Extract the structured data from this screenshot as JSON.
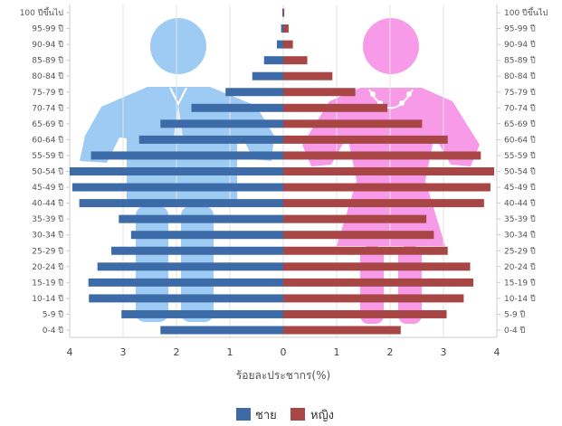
{
  "chart_data": {
    "type": "bar",
    "orientation": "horizontal",
    "style": "population-pyramid",
    "categories": [
      "100 ปีขึ้นไป",
      "95-99 ปี",
      "90-94 ปี",
      "85-89 ปี",
      "80-84 ปี",
      "75-79 ปี",
      "70-74 ปี",
      "65-69 ปี",
      "60-64 ปี",
      "55-59 ปี",
      "50-54 ปี",
      "45-49 ปี",
      "40-44 ปี",
      "35-39 ปี",
      "30-34 ปี",
      "25-29 ปี",
      "20-24 ปี",
      "15-19 ปี",
      "10-14 ปี",
      "5-9 ปี",
      "0-4 ปี"
    ],
    "series": [
      {
        "name": "ชาย",
        "color": "#3d6ba8",
        "side": "left",
        "values": [
          0.01,
          0.04,
          0.12,
          0.36,
          0.58,
          1.08,
          1.72,
          2.3,
          2.7,
          3.6,
          4.0,
          3.95,
          3.82,
          3.08,
          2.85,
          3.22,
          3.48,
          3.65,
          3.64,
          3.03,
          2.3
        ]
      },
      {
        "name": "หญิง",
        "color": "#a84646",
        "side": "right",
        "values": [
          0.02,
          0.1,
          0.18,
          0.45,
          0.92,
          1.35,
          1.95,
          2.6,
          3.08,
          3.7,
          3.95,
          3.88,
          3.76,
          2.68,
          2.82,
          3.08,
          3.5,
          3.56,
          3.38,
          3.06,
          2.2
        ]
      }
    ],
    "xlabel": "ร้อยละประชากร(%)",
    "xticks": [
      "4",
      "3",
      "2",
      "1",
      "0",
      "1",
      "2",
      "3",
      "4"
    ],
    "xlim": [
      -4,
      4
    ],
    "grid": true,
    "legend": "bottom-center",
    "background_icons": {
      "male": {
        "name": "male-figure-icon",
        "color": "#9ecbf3"
      },
      "female": {
        "name": "female-figure-icon",
        "color": "#f79be8"
      }
    }
  }
}
